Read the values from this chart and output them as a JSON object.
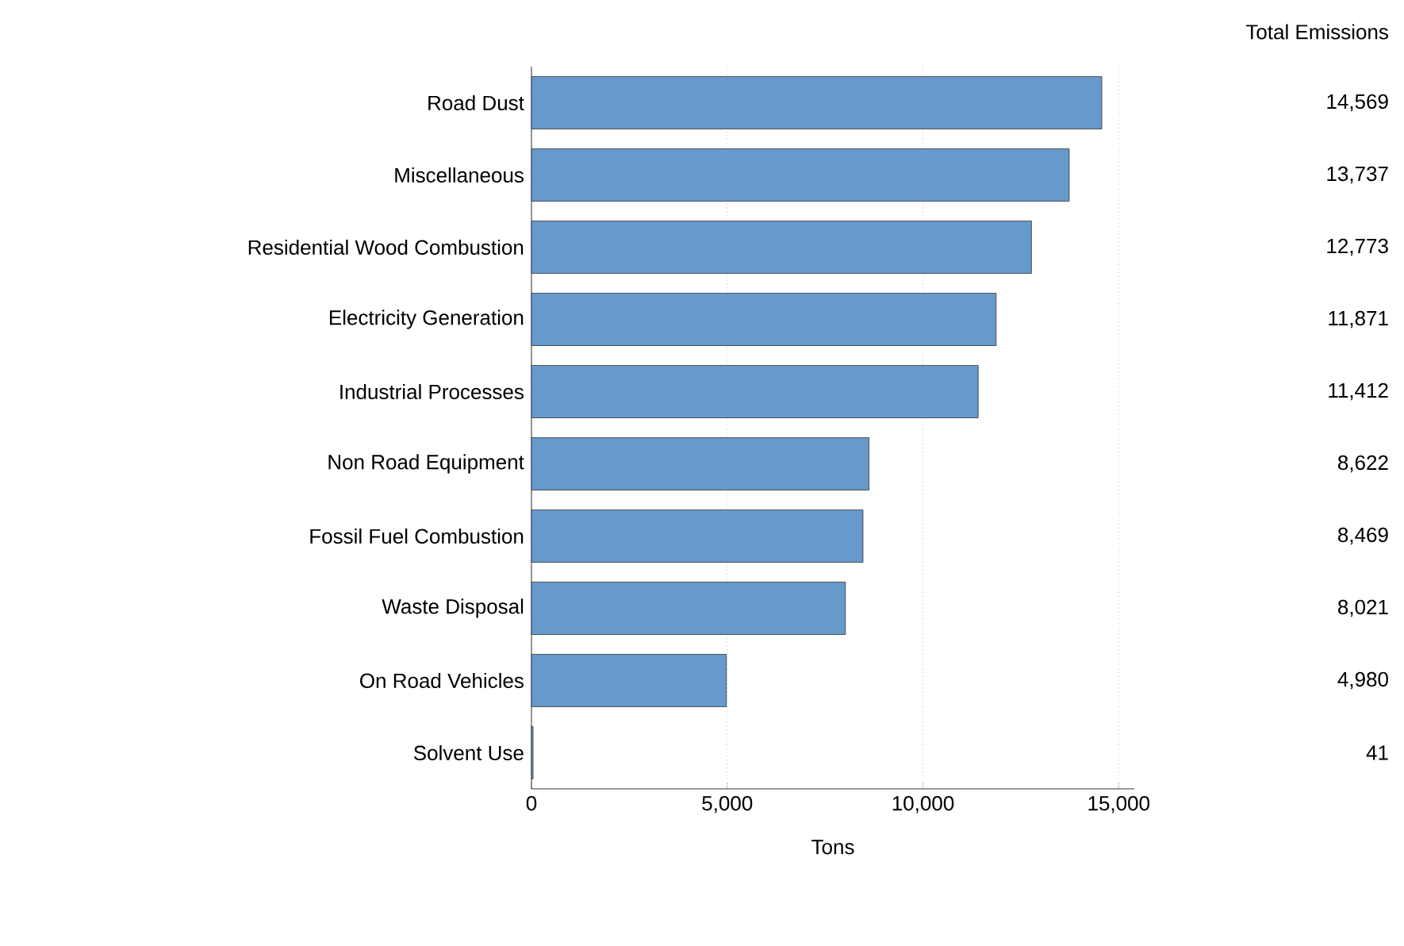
{
  "chart_data": {
    "type": "bar",
    "orientation": "horizontal",
    "categories": [
      "Road Dust",
      "Miscellaneous",
      "Residential Wood Combustion",
      "Electricity Generation",
      "Industrial Processes",
      "Non Road Equipment",
      "Fossil Fuel Combustion",
      "Waste Disposal",
      "On Road Vehicles",
      "Solvent Use"
    ],
    "values": [
      14569,
      13737,
      12773,
      11871,
      11412,
      8622,
      8469,
      8021,
      4980,
      41
    ],
    "color": "#6699cc",
    "xlabel": "Tons",
    "xlim": [
      0,
      15400
    ],
    "xticks": [
      0,
      {
        "value": 5000,
        "label": "5,000"
      },
      {
        "value": 10000,
        "label": "10,000"
      },
      {
        "value": 15000,
        "label": "15,000"
      }
    ],
    "value_labels": [
      "14,569",
      "13,737",
      "12,773",
      "11,871",
      "11,412",
      "8,622",
      "8,469",
      "8,021",
      "4,980",
      "41"
    ],
    "grid": "x",
    "annotations": [
      "Total Emissions"
    ]
  }
}
